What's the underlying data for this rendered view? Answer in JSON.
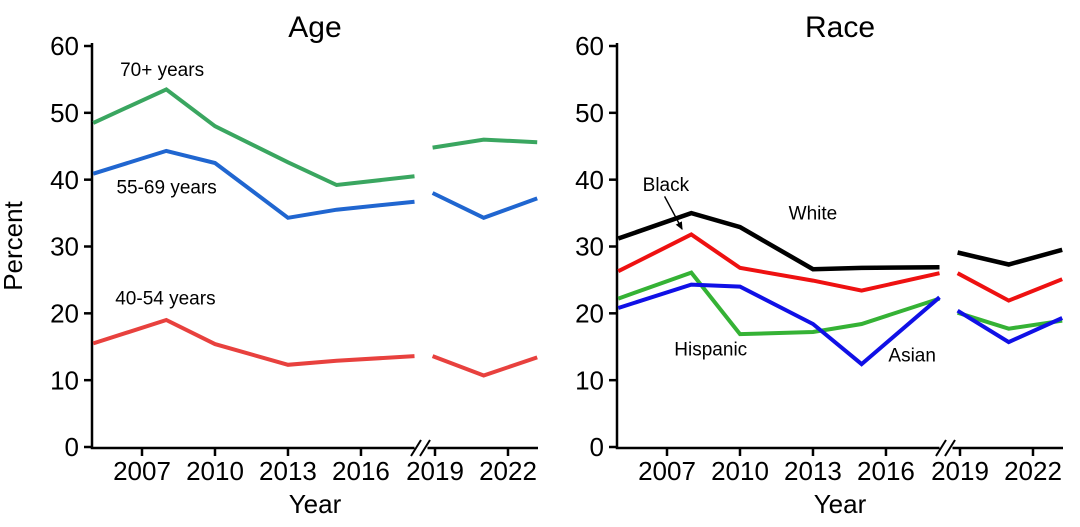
{
  "figure": {
    "ylabel": "Percent",
    "xlabel": "Year"
  },
  "chart_data": [
    {
      "type": "line",
      "title": "Age",
      "xlabel": "Year",
      "ylabel": "Percent",
      "ylim": [
        0,
        60
      ],
      "yticks": [
        0,
        10,
        20,
        30,
        40,
        50,
        60
      ],
      "xticks_seg1": [
        2007,
        2010,
        2013,
        2016
      ],
      "xticks_seg2": [
        2019,
        2022
      ],
      "axis_break": true,
      "grid": false,
      "x_seg1": [
        2005,
        2008,
        2010,
        2013,
        2015,
        2018.2
      ],
      "x_seg2": [
        2018.9,
        2021,
        2023.2
      ],
      "series": [
        {
          "name": "70+ years",
          "color": "#3aa660",
          "seg1": [
            48.5,
            53.5,
            48.0,
            42.6,
            39.2,
            40.5
          ],
          "seg2": [
            44.8,
            46.0,
            45.6
          ],
          "label": {
            "text": "70+ years",
            "x": 2006.1,
            "y": 56.5
          }
        },
        {
          "name": "55-69 years",
          "color": "#2066d0",
          "seg1": [
            40.9,
            44.3,
            42.5,
            34.3,
            35.5,
            36.7
          ],
          "seg2": [
            38.0,
            34.3,
            37.2
          ],
          "label": {
            "text": "55-69 years",
            "x": 2005.95,
            "y": 38.9
          }
        },
        {
          "name": "40-54 years",
          "color": "#e8413e",
          "seg1": [
            15.5,
            19.0,
            15.4,
            12.3,
            12.9,
            13.6
          ],
          "seg2": [
            13.6,
            10.7,
            13.4
          ],
          "label": {
            "text": "40-54 years",
            "x": 2005.9,
            "y": 22.3
          }
        }
      ]
    },
    {
      "type": "line",
      "title": "Race",
      "xlabel": "Year",
      "ylabel": "",
      "ylim": [
        0,
        60
      ],
      "yticks": [
        0,
        10,
        20,
        30,
        40,
        50,
        60
      ],
      "xticks_seg1": [
        2007,
        2010,
        2013,
        2016
      ],
      "xticks_seg2": [
        2019,
        2022
      ],
      "axis_break": true,
      "grid": false,
      "x_seg1": [
        2005,
        2008,
        2010,
        2013,
        2015,
        2018.2
      ],
      "x_seg2": [
        2018.9,
        2021,
        2023.2
      ],
      "series": [
        {
          "name": "Hispanic",
          "color": "#35b235",
          "seg1": [
            22.2,
            26.1,
            16.9,
            17.2,
            18.4,
            22.2
          ],
          "seg2": [
            20.1,
            17.7,
            18.9
          ],
          "label": {
            "text": "Hispanic",
            "x": 2007.3,
            "y": 14.7
          }
        },
        {
          "name": "Asian",
          "color": "#1010e6",
          "seg1": [
            20.8,
            24.3,
            24.0,
            18.4,
            12.4,
            22.4
          ],
          "seg2": [
            20.4,
            15.7,
            19.3
          ],
          "label": {
            "text": "Asian",
            "x": 2016.1,
            "y": 13.8
          }
        },
        {
          "name": "Black",
          "color": "#ee1111",
          "seg1": [
            26.3,
            31.8,
            26.8,
            24.9,
            23.4,
            26.0
          ],
          "seg2": [
            26.0,
            21.9,
            25.1
          ],
          "label": {
            "text": "Black",
            "x": 2006.0,
            "y": 39.3
          },
          "arrow": {
            "x1": 2006.9,
            "y1": 37.5,
            "x2": 2007.62,
            "y2": 32.6
          }
        },
        {
          "name": "White",
          "color": "#000000",
          "seg1": [
            31.2,
            35.0,
            32.9,
            26.6,
            26.8,
            26.9
          ],
          "seg2": [
            29.1,
            27.3,
            29.5
          ],
          "label": {
            "text": "White",
            "x": 2012.0,
            "y": 35.0
          }
        }
      ]
    }
  ]
}
